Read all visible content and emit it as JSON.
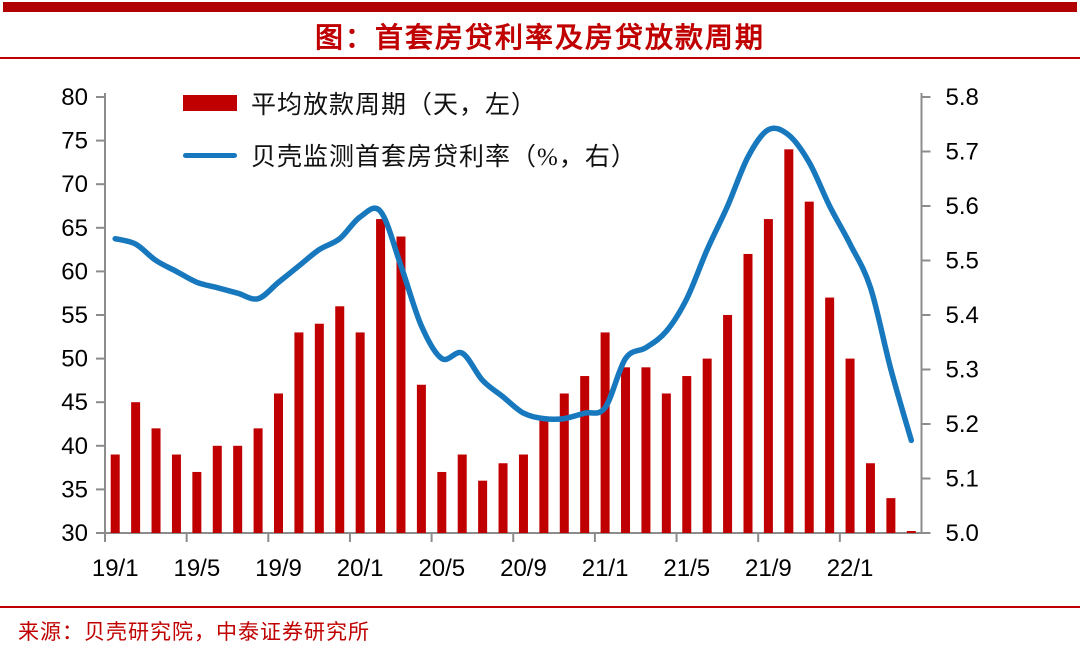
{
  "header": {
    "title": "图：首套房贷利率及房贷放款周期"
  },
  "legend": {
    "bar_label": "平均放款周期（天，左）",
    "line_label": "贝壳监测首套房贷利率（%，右）"
  },
  "footer": {
    "source": "来源：贝壳研究院，中泰证券研究所"
  },
  "colors": {
    "bar_red": "#c00000",
    "line_blue": "#1778be",
    "axis_gray": "#8c8c8c",
    "accent_red": "#c00000",
    "top_bar_red": "#b00000"
  },
  "chart_data": {
    "type": "bar+line",
    "categories": [
      "19/1",
      "19/2",
      "19/3",
      "19/4",
      "19/5",
      "19/6",
      "19/7",
      "19/8",
      "19/9",
      "19/10",
      "19/11",
      "19/12",
      "20/1",
      "20/2",
      "20/3",
      "20/4",
      "20/5",
      "20/6",
      "20/7",
      "20/8",
      "20/9",
      "20/10",
      "20/11",
      "20/12",
      "21/1",
      "21/2",
      "21/3",
      "21/4",
      "21/5",
      "21/6",
      "21/7",
      "21/8",
      "21/9",
      "21/10",
      "21/11",
      "21/12",
      "22/1",
      "22/2",
      "22/3",
      "22/4"
    ],
    "series": [
      {
        "name": "平均放款周期（天，左）",
        "type": "bar",
        "axis": "left",
        "values": [
          39,
          45,
          42,
          39,
          37,
          40,
          40,
          42,
          46,
          53,
          54,
          56,
          53,
          66,
          64,
          47,
          37,
          39,
          36,
          38,
          39,
          43,
          46,
          48,
          53,
          49,
          49,
          46,
          48,
          50,
          55,
          62,
          66,
          74,
          68,
          57,
          50,
          38,
          34,
          30
        ]
      },
      {
        "name": "贝壳监测首套房贷利率（%，右）",
        "type": "line",
        "axis": "right",
        "values": [
          5.54,
          5.53,
          5.5,
          5.48,
          5.46,
          5.45,
          5.44,
          5.43,
          5.46,
          5.49,
          5.52,
          5.54,
          5.58,
          5.59,
          5.49,
          5.38,
          5.32,
          5.33,
          5.28,
          5.25,
          5.22,
          5.21,
          5.21,
          5.22,
          5.23,
          5.32,
          5.34,
          5.37,
          5.43,
          5.52,
          5.6,
          5.69,
          5.74,
          5.73,
          5.68,
          5.6,
          5.53,
          5.45,
          5.3,
          5.17
        ]
      }
    ],
    "title": "图：首套房贷利率及房贷放款周期",
    "xlabel": "",
    "ylabel_left": "天",
    "ylabel_right": "%",
    "axes": {
      "left": {
        "min": 30,
        "max": 80,
        "ticks": [
          30,
          35,
          40,
          45,
          50,
          55,
          60,
          65,
          70,
          75,
          80
        ],
        "labels": [
          "30",
          "35",
          "40",
          "45",
          "50",
          "55",
          "60",
          "65",
          "70",
          "75",
          "80"
        ]
      },
      "right": {
        "min": 5.0,
        "max": 5.8,
        "ticks": [
          5.0,
          5.1,
          5.2,
          5.3,
          5.4,
          5.5,
          5.6,
          5.7,
          5.8
        ],
        "labels": [
          "5.0",
          "5.1",
          "5.2",
          "5.3",
          "5.4",
          "5.5",
          "5.6",
          "5.7",
          "5.8"
        ]
      },
      "x_tick_labels": [
        "19/1",
        "19/5",
        "19/9",
        "20/1",
        "20/5",
        "20/9",
        "21/1",
        "21/5",
        "21/9",
        "22/1"
      ],
      "x_tick_step": 4
    },
    "grid": false,
    "legend_position": "top-left-inside"
  }
}
